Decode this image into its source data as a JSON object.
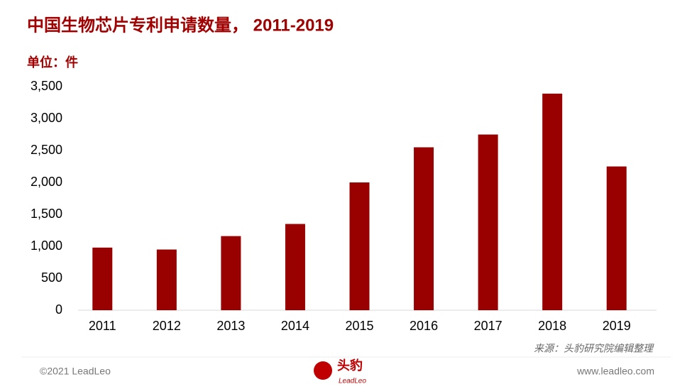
{
  "chart_data": {
    "type": "bar",
    "title": "中国生物芯片专利申请数量， 2011-2019",
    "unit_label": "单位：件",
    "categories": [
      "2011",
      "2012",
      "2013",
      "2014",
      "2015",
      "2016",
      "2017",
      "2018",
      "2019"
    ],
    "values": [
      980,
      950,
      1160,
      1350,
      2000,
      2550,
      2750,
      3390,
      2250
    ],
    "color": "#990000",
    "ylim": [
      0,
      3500
    ],
    "yticks": [
      0,
      500,
      {
        "value": 1000,
        "label": "1,000"
      },
      {
        "value": 1500,
        "label": "1,500"
      },
      {
        "value": 2000,
        "label": "2,000"
      },
      {
        "value": 2500,
        "label": "2,500"
      },
      {
        "value": 3000,
        "label": "3,000"
      },
      {
        "value": 3500,
        "label": "3,500"
      }
    ],
    "grid": false,
    "source": "来源：头豹研究院编辑整理"
  },
  "footer": {
    "copyright": "©2021 LeadLeo",
    "logo_cn": "头豹",
    "logo_en": "LeadLeo",
    "website": "www.leadleo.com"
  }
}
